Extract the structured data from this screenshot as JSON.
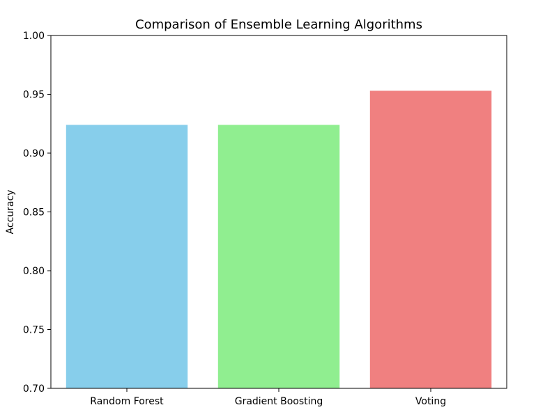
{
  "chart_data": {
    "type": "bar",
    "title": "Comparison of Ensemble Learning Algorithms",
    "xlabel": "",
    "ylabel": "Accuracy",
    "categories": [
      "Random Forest",
      "Gradient Boosting",
      "Voting"
    ],
    "values": [
      0.924,
      0.924,
      0.953
    ],
    "colors": [
      "#87ceeb",
      "#90ee90",
      "#f08080"
    ],
    "ylim": [
      0.7,
      1.0
    ],
    "yticks": [
      "0.70",
      "0.75",
      "0.80",
      "0.85",
      "0.90",
      "0.95",
      "1.00"
    ],
    "grid": false,
    "legend": false
  }
}
